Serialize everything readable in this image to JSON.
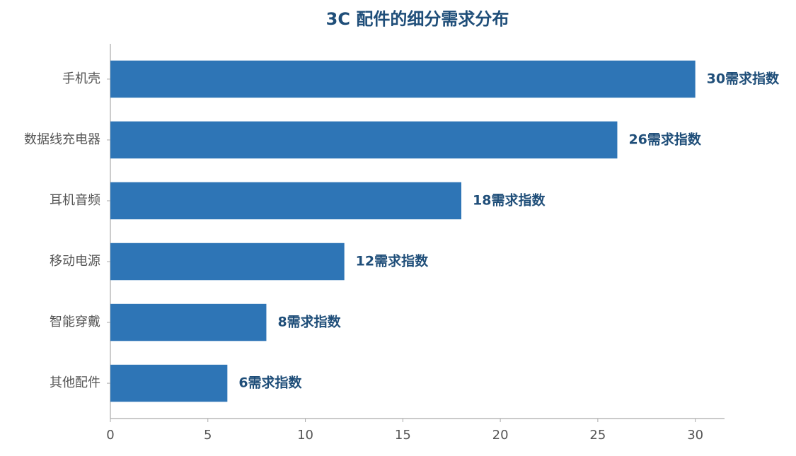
{
  "chart_data": {
    "type": "barh",
    "title": "3C 配件的细分需求分布",
    "categories": [
      "手机壳",
      "数据线充电器",
      "耳机音频",
      "移动电源",
      "智能穿戴",
      "其他配件"
    ],
    "values": [
      30,
      26,
      18,
      12,
      8,
      6
    ],
    "value_labels": [
      "30需求指数",
      "26需求指数",
      "18需求指数",
      "12需求指数",
      "8需求指数",
      "6需求指数"
    ],
    "color": "#2e75b6",
    "xlim": [
      0,
      31.5
    ],
    "xticks": [
      0,
      5,
      10,
      15,
      20,
      25,
      30
    ],
    "grid": false
  }
}
